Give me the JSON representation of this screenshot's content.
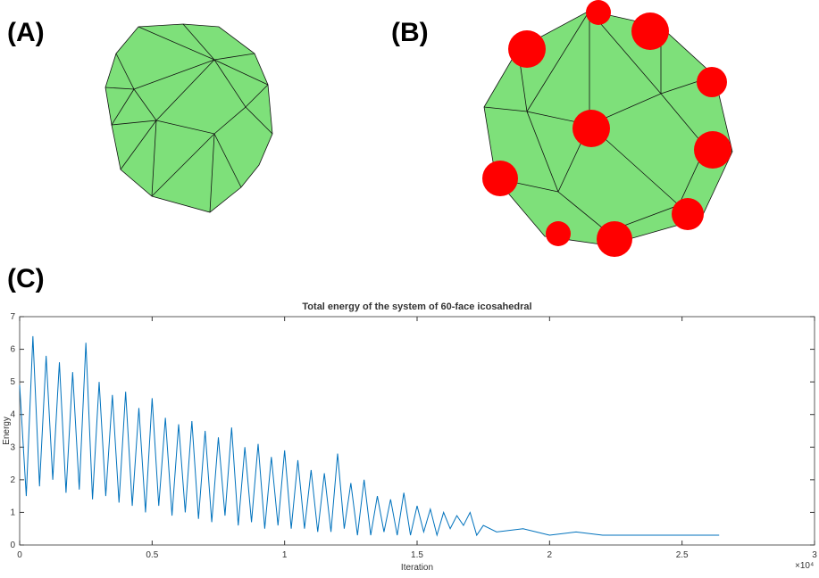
{
  "panel_labels": [
    "(A)",
    "(B)",
    "(C)"
  ],
  "chart_data": {
    "type": "line",
    "title": "Total energy of the system of 60-face icosahedral",
    "x_label": "Iteration",
    "y_label": "Energy",
    "x_exponent": "×10⁴",
    "x": [
      0,
      250,
      500,
      750,
      1000,
      1250,
      1500,
      1750,
      2000,
      2250,
      2500,
      2750,
      3000,
      3250,
      3500,
      3750,
      4000,
      4250,
      4500,
      4750,
      5000,
      5250,
      5500,
      5750,
      6000,
      6250,
      6500,
      6750,
      7000,
      7250,
      7500,
      7750,
      8000,
      8250,
      8500,
      8750,
      9000,
      9250,
      9500,
      9750,
      10000,
      10250,
      10500,
      10750,
      11000,
      11250,
      11500,
      11750,
      12000,
      12250,
      12500,
      12750,
      13000,
      13250,
      13500,
      13750,
      14000,
      14250,
      14500,
      14750,
      15000,
      15250,
      15500,
      15750,
      16000,
      16250,
      16500,
      16750,
      17000,
      17250,
      17500,
      18000,
      19000,
      20000,
      21000,
      22000,
      23000,
      24000,
      25000,
      26400
    ],
    "series": [
      {
        "name": "Energy",
        "color": "#0072bd",
        "values": [
          4.9,
          1.5,
          6.4,
          1.8,
          5.8,
          2.0,
          5.6,
          1.6,
          5.3,
          1.7,
          6.2,
          1.4,
          5.0,
          1.5,
          4.6,
          1.3,
          4.7,
          1.2,
          4.2,
          1.0,
          4.5,
          1.2,
          3.9,
          0.9,
          3.7,
          1.0,
          3.8,
          0.8,
          3.5,
          0.7,
          3.3,
          0.9,
          3.6,
          0.6,
          3.0,
          0.7,
          3.1,
          0.5,
          2.7,
          0.6,
          2.9,
          0.5,
          2.6,
          0.5,
          2.3,
          0.4,
          2.2,
          0.4,
          2.8,
          0.5,
          1.9,
          0.3,
          2.0,
          0.3,
          1.5,
          0.4,
          1.4,
          0.3,
          1.6,
          0.3,
          1.2,
          0.4,
          1.1,
          0.3,
          1.0,
          0.5,
          0.9,
          0.6,
          1.0,
          0.3,
          0.6,
          0.4,
          0.5,
          0.3,
          0.4,
          0.3,
          0.3,
          0.3,
          0.3,
          0.3
        ]
      }
    ],
    "xlim": [
      0,
      30000
    ],
    "xticks": [
      0,
      {
        "value": 5000,
        "label": "0.5"
      },
      {
        "value": 10000,
        "label": "1"
      },
      {
        "value": 15000,
        "label": "1.5"
      },
      {
        "value": 20000,
        "label": "2"
      },
      {
        "value": 25000,
        "label": "2.5"
      },
      {
        "value": 30000,
        "label": "3"
      }
    ],
    "ylim": [
      0,
      7
    ],
    "yticks": [
      0,
      1,
      2,
      3,
      4,
      5,
      6,
      7
    ],
    "grid": false
  }
}
